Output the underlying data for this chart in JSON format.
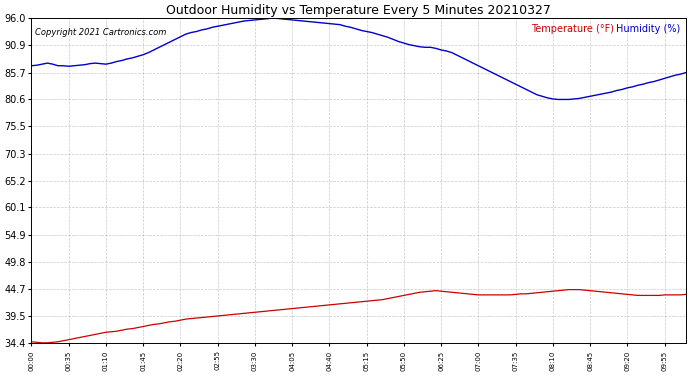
{
  "title": "Outdoor Humidity vs Temperature Every 5 Minutes 20210327",
  "copyright_text": "Copyright 2021 Cartronics.com",
  "legend_temp": "Temperature (°F)",
  "legend_hum": "Humidity (%)",
  "background_color": "#ffffff",
  "grid_color": "#bbbbbb",
  "temp_color": "#cc0000",
  "hum_color": "#0000cc",
  "yticks": [
    34.4,
    39.5,
    44.7,
    49.8,
    54.9,
    60.1,
    65.2,
    70.3,
    75.5,
    80.6,
    85.7,
    90.9,
    96.0
  ],
  "ymin": 34.4,
  "ymax": 96.0,
  "tick_every_n": 7,
  "humidity_data": [
    87.0,
    87.1,
    87.3,
    87.5,
    87.3,
    87.0,
    87.0,
    86.9,
    87.0,
    87.1,
    87.2,
    87.4,
    87.5,
    87.4,
    87.3,
    87.5,
    87.8,
    88.0,
    88.3,
    88.5,
    88.8,
    89.1,
    89.5,
    90.0,
    90.5,
    91.0,
    91.5,
    92.0,
    92.5,
    93.0,
    93.3,
    93.5,
    93.8,
    94.0,
    94.3,
    94.5,
    94.7,
    94.9,
    95.1,
    95.3,
    95.5,
    95.6,
    95.7,
    95.8,
    95.9,
    96.0,
    96.0,
    95.9,
    95.8,
    95.7,
    95.6,
    95.5,
    95.4,
    95.3,
    95.2,
    95.1,
    95.0,
    94.9,
    94.8,
    94.5,
    94.3,
    94.0,
    93.7,
    93.5,
    93.3,
    93.0,
    92.7,
    92.4,
    92.0,
    91.6,
    91.3,
    91.0,
    90.8,
    90.6,
    90.5,
    90.5,
    90.3,
    90.0,
    89.8,
    89.5,
    89.0,
    88.5,
    88.0,
    87.5,
    87.0,
    86.5,
    86.0,
    85.5,
    85.0,
    84.5,
    84.0,
    83.5,
    83.0,
    82.5,
    82.0,
    81.5,
    81.2,
    80.9,
    80.7,
    80.6,
    80.6,
    80.6,
    80.7,
    80.8,
    81.0,
    81.2,
    81.4,
    81.6,
    81.8,
    82.0,
    82.3,
    82.5,
    82.8,
    83.0,
    83.3,
    83.5,
    83.8,
    84.0,
    84.3,
    84.6,
    84.9,
    85.2,
    85.4,
    85.7
  ],
  "temperature_data": [
    34.6,
    34.5,
    34.4,
    34.4,
    34.5,
    34.6,
    34.8,
    35.0,
    35.2,
    35.4,
    35.6,
    35.8,
    36.0,
    36.2,
    36.4,
    36.5,
    36.6,
    36.8,
    37.0,
    37.1,
    37.3,
    37.5,
    37.7,
    37.9,
    38.0,
    38.2,
    38.4,
    38.5,
    38.7,
    38.9,
    39.0,
    39.1,
    39.2,
    39.3,
    39.4,
    39.5,
    39.6,
    39.7,
    39.8,
    39.9,
    40.0,
    40.1,
    40.2,
    40.3,
    40.4,
    40.5,
    40.6,
    40.7,
    40.8,
    40.9,
    41.0,
    41.1,
    41.2,
    41.3,
    41.4,
    41.5,
    41.6,
    41.7,
    41.8,
    41.9,
    42.0,
    42.1,
    42.2,
    42.3,
    42.4,
    42.5,
    42.6,
    42.8,
    43.0,
    43.2,
    43.4,
    43.6,
    43.8,
    44.0,
    44.1,
    44.2,
    44.3,
    44.2,
    44.1,
    44.0,
    43.9,
    43.8,
    43.7,
    43.6,
    43.5,
    43.5,
    43.5,
    43.5,
    43.5,
    43.5,
    43.5,
    43.6,
    43.7,
    43.7,
    43.8,
    43.9,
    44.0,
    44.1,
    44.2,
    44.3,
    44.4,
    44.5,
    44.5,
    44.5,
    44.4,
    44.3,
    44.2,
    44.1,
    44.0,
    43.9,
    43.8,
    43.7,
    43.6,
    43.5,
    43.4,
    43.4,
    43.4,
    43.4,
    43.4,
    43.5,
    43.5,
    43.5,
    43.5,
    43.6
  ]
}
